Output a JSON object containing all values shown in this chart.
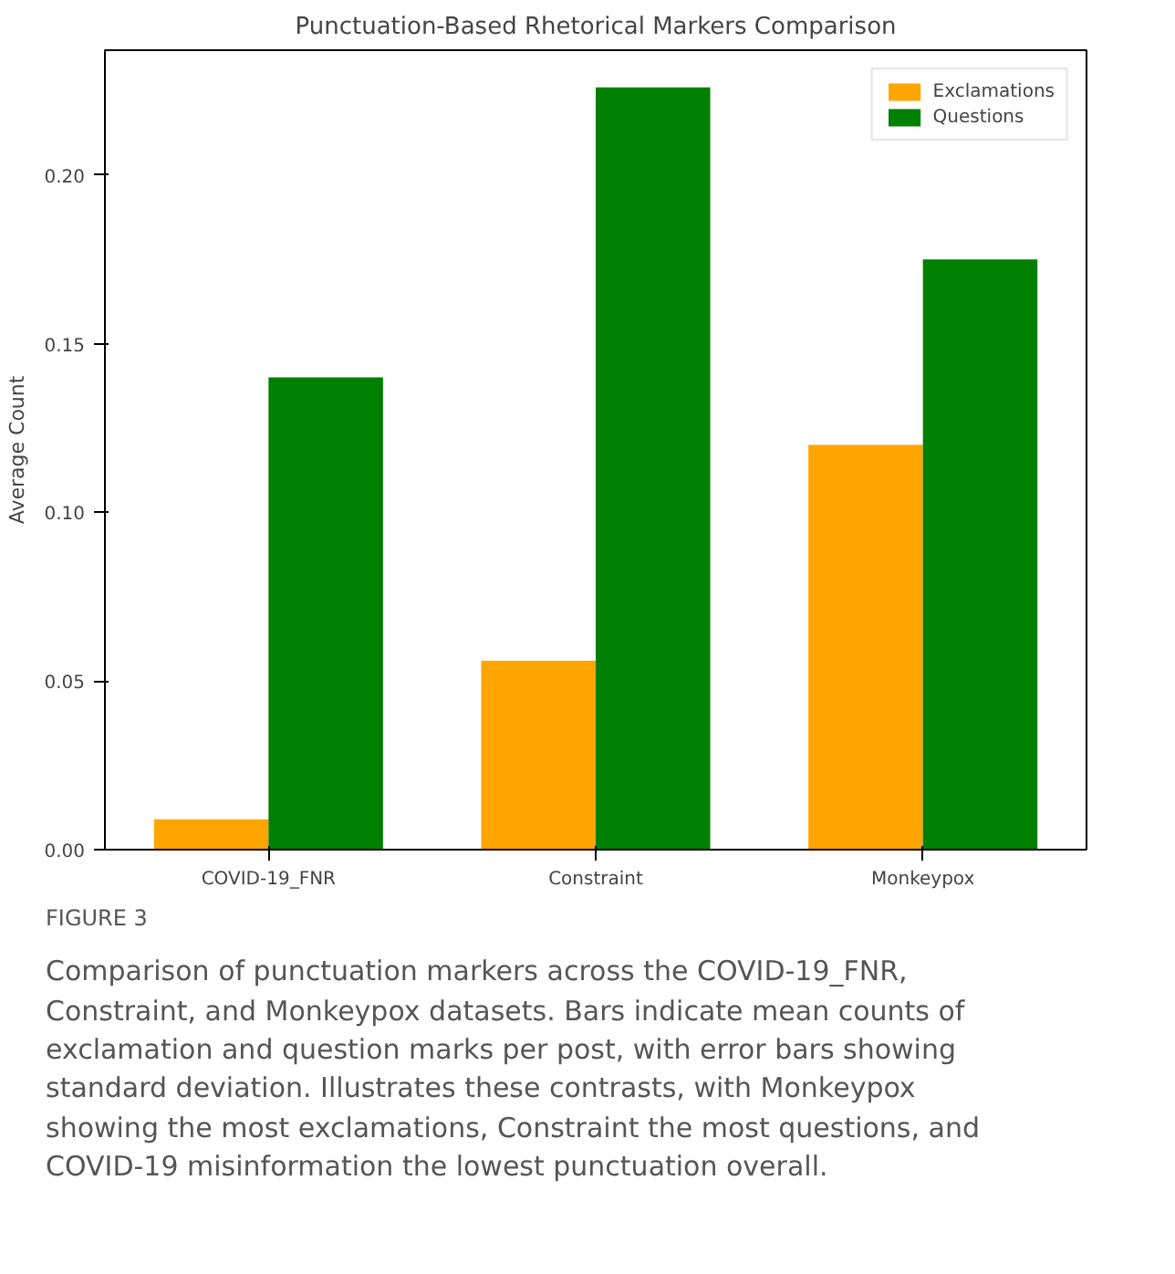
{
  "chart_data": {
    "type": "bar",
    "title": "Punctuation-Based Rhetorical Markers Comparison",
    "ylabel": "Average Count",
    "categories": [
      "COVID-19_FNR",
      "Constraint",
      "Monkeypox"
    ],
    "series": [
      {
        "name": "Exclamations",
        "color": "#ffa500",
        "values": [
          0.009,
          0.056,
          0.12
        ]
      },
      {
        "name": "Questions",
        "color": "#008000",
        "values": [
          0.14,
          0.226,
          0.175
        ]
      }
    ],
    "ylim": [
      0,
      0.237
    ],
    "yticks": [
      {
        "value": 0,
        "label": "0.00"
      },
      {
        "value": 0.05,
        "label": "0.05"
      },
      {
        "value": 0.1,
        "label": "0.10"
      },
      {
        "value": 0.15,
        "label": "0.15"
      },
      {
        "value": 0.2,
        "label": "0.20"
      }
    ],
    "grid": false,
    "legend": "top right",
    "annotations": [
      "FIGURE 3",
      "Comparison of punctuation markers across the COVID-19_FNR, Constraint, and Monkeypox datasets. Bars indicate mean counts of exclamation and question marks per post, with error bars showing standard deviation. Illustrates these contrasts, with Monkeypox showing the most exclamations, Constraint the most questions, and COVID-19 misinformation the lowest punctuation overall."
    ]
  }
}
